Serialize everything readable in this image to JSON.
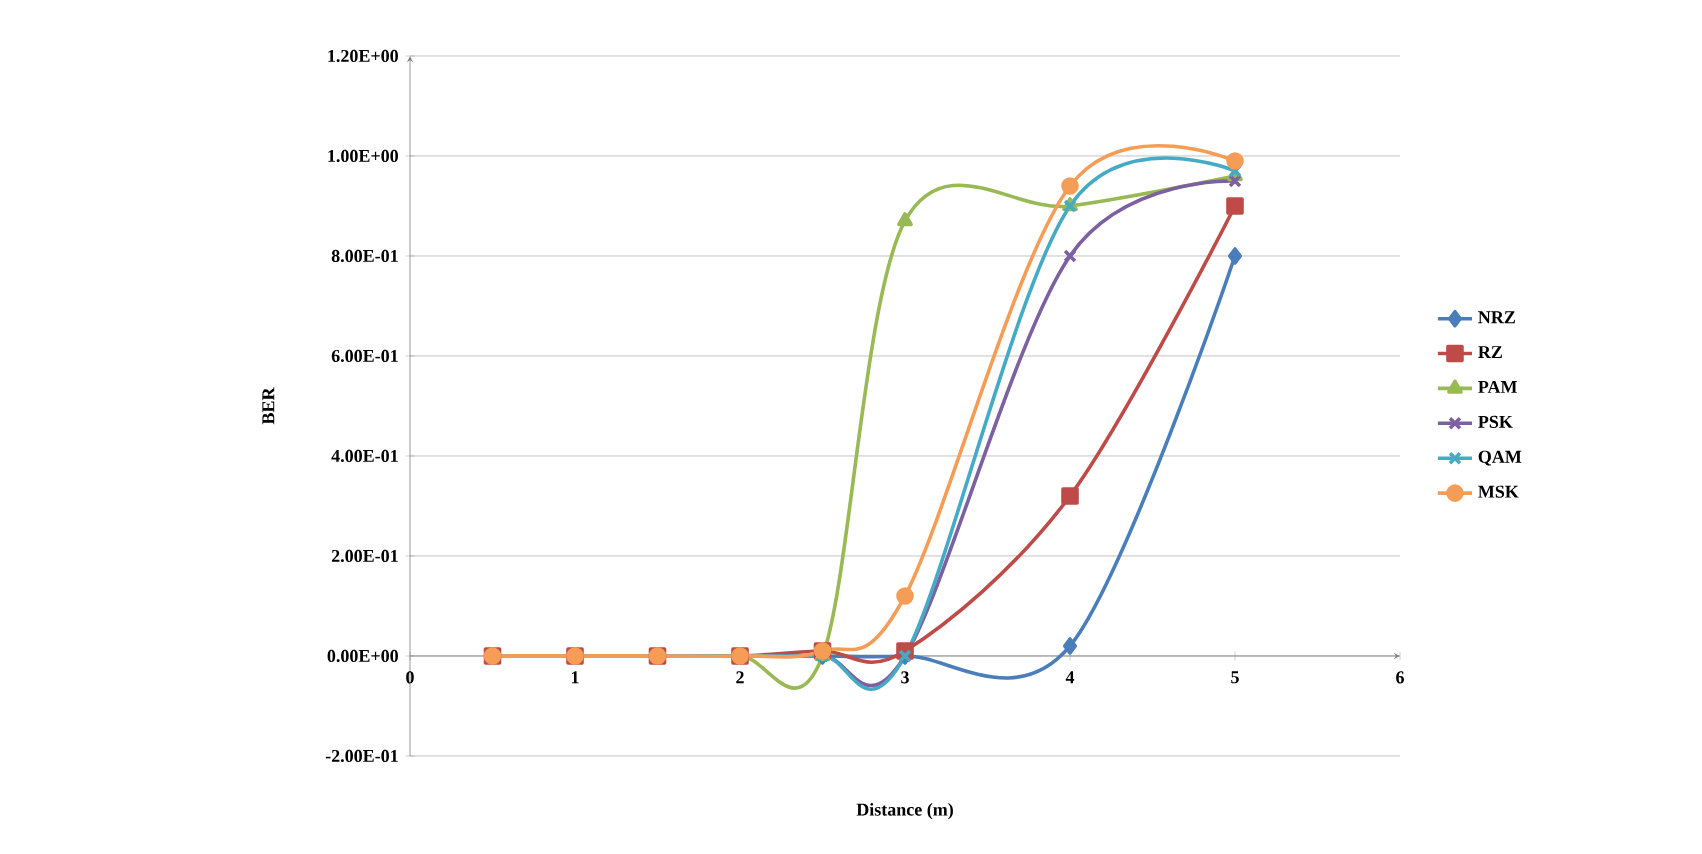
{
  "chart_data": {
    "type": "line",
    "xlabel": "Distance (m)",
    "ylabel": "BER",
    "x": [
      0.5,
      1,
      1.5,
      2,
      2.5,
      3,
      4,
      5
    ],
    "series": [
      {
        "name": "NRZ",
        "color": "#4a7ebb",
        "marker": "diamond",
        "values": [
          null,
          null,
          0,
          0,
          0,
          0,
          0.02,
          0.8
        ]
      },
      {
        "name": "RZ",
        "color": "#be4b48",
        "marker": "square",
        "values": [
          0,
          0,
          0,
          0,
          0.01,
          0.01,
          0.32,
          0.9
        ]
      },
      {
        "name": "PAM",
        "color": "#98b954",
        "marker": "triangle",
        "values": [
          0,
          0,
          0,
          0,
          0,
          0.87,
          0.9,
          0.96
        ]
      },
      {
        "name": "PSK",
        "color": "#7d60a0",
        "marker": "cross",
        "values": [
          null,
          null,
          null,
          0,
          0,
          0,
          0.8,
          0.95
        ]
      },
      {
        "name": "QAM",
        "color": "#46aac5",
        "marker": "cross",
        "values": [
          null,
          null,
          0,
          0,
          0,
          0,
          0.9,
          0.97
        ]
      },
      {
        "name": "MSK",
        "color": "#f59d56",
        "marker": "circle",
        "values": [
          0,
          0,
          0,
          0,
          0.01,
          0.12,
          0.94,
          0.99
        ]
      }
    ],
    "xlim": [
      0,
      6
    ],
    "xticks": [
      0,
      1,
      2,
      3,
      4,
      5,
      6
    ],
    "ylim": [
      -0.2,
      1.2
    ],
    "yticks": [
      {
        "value": -0.2,
        "label": "-2.00E-01"
      },
      {
        "value": 0,
        "label": "0.00E+00"
      },
      {
        "value": 0.2,
        "label": "2.00E-01"
      },
      {
        "value": 0.4,
        "label": "4.00E-01"
      },
      {
        "value": 0.6,
        "label": "6.00E-01"
      },
      {
        "value": 0.8,
        "label": "8.00E-01"
      },
      {
        "value": 1.0,
        "label": "1.00E+00"
      },
      {
        "value": 1.2,
        "label": "1.20E+00"
      }
    ],
    "grid": "y",
    "legend": "right",
    "line_style": "solid"
  }
}
